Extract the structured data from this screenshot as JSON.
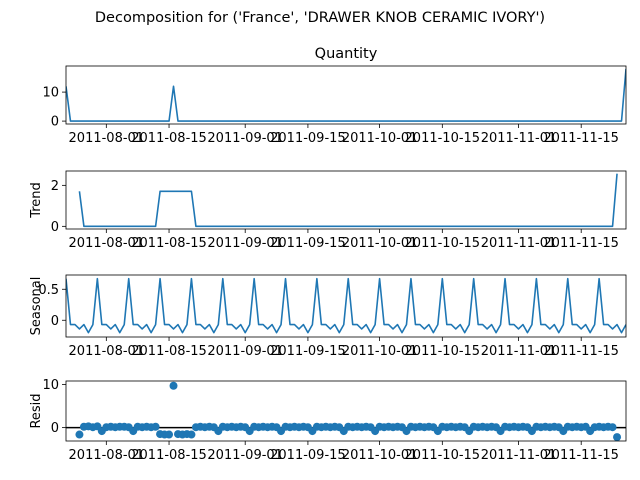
{
  "chart_data": {
    "type": "line",
    "suptitle": "Decomposition for ('France', 'DRAWER KNOB CERAMIC IVORY')",
    "x_start": "2011-07-23",
    "x_end": "2011-11-25",
    "x_ticks": [
      "2011-08-01",
      "2011-08-15",
      "2011-09-01",
      "2011-09-15",
      "2011-10-01",
      "2011-10-15",
      "2011-11-01",
      "2011-11-15"
    ],
    "colors": {
      "series": "#1f77b4",
      "zero_line": "#000000"
    },
    "panels": [
      {
        "kind": "line",
        "title": "Quantity",
        "ylabel": "",
        "ylim": [
          -1,
          19
        ],
        "yticks": [
          0,
          10
        ],
        "points": [
          [
            "2011-07-23",
            12
          ],
          [
            "2011-07-24",
            0
          ],
          [
            "2011-08-15",
            0
          ],
          [
            "2011-08-16",
            12
          ],
          [
            "2011-08-17",
            0
          ],
          [
            "2011-11-24",
            0
          ],
          [
            "2011-11-25",
            18
          ]
        ]
      },
      {
        "kind": "line",
        "title": "",
        "ylabel": "Trend",
        "ylim": [
          -0.13,
          2.7
        ],
        "yticks": [
          0,
          2
        ],
        "points": [
          [
            "2011-07-26",
            1.71
          ],
          [
            "2011-07-27",
            0
          ],
          [
            "2011-08-12",
            0
          ],
          [
            "2011-08-13",
            1.71
          ],
          [
            "2011-08-20",
            1.71
          ],
          [
            "2011-08-21",
            0
          ],
          [
            "2011-11-22",
            0
          ],
          [
            "2011-11-23",
            2.57
          ]
        ]
      },
      {
        "kind": "seasonal",
        "title": "",
        "ylabel": "Seasonal",
        "ylim": [
          -0.27,
          0.73
        ],
        "yticks": [
          0.0,
          0.5
        ],
        "period_days": 7,
        "anchor": "2011-07-23",
        "pattern": [
          0.67,
          -0.07,
          -0.07,
          -0.14,
          -0.07,
          -0.2,
          -0.07
        ]
      },
      {
        "kind": "scatter",
        "title": "",
        "ylabel": "Resid",
        "ylim": [
          -3.1,
          10.8
        ],
        "yticks": [
          0,
          10
        ],
        "zero_line": true,
        "points": [
          [
            "2011-07-26",
            -1.6
          ],
          [
            "2011-07-27",
            0.2
          ],
          [
            "2011-07-28",
            0.3
          ],
          [
            "2011-07-29",
            0.1
          ],
          [
            "2011-07-30",
            0.3
          ],
          [
            "2011-07-31",
            -0.8
          ],
          [
            "2011-08-01",
            0.1
          ],
          [
            "2011-08-02",
            0.2
          ],
          [
            "2011-08-03",
            0.1
          ],
          [
            "2011-08-04",
            0.2
          ],
          [
            "2011-08-05",
            0.2
          ],
          [
            "2011-08-06",
            0.1
          ],
          [
            "2011-08-07",
            -0.8
          ],
          [
            "2011-08-08",
            0.2
          ],
          [
            "2011-08-09",
            0.1
          ],
          [
            "2011-08-10",
            0.2
          ],
          [
            "2011-08-11",
            0.1
          ],
          [
            "2011-08-12",
            0.2
          ],
          [
            "2011-08-13",
            -1.5
          ],
          [
            "2011-08-14",
            -1.6
          ],
          [
            "2011-08-15",
            -1.6
          ],
          [
            "2011-08-16",
            9.7
          ],
          [
            "2011-08-17",
            -1.5
          ],
          [
            "2011-08-18",
            -1.6
          ],
          [
            "2011-08-19",
            -1.5
          ],
          [
            "2011-08-20",
            -1.6
          ],
          [
            "2011-08-21",
            0.1
          ],
          [
            "2011-08-22",
            0.2
          ],
          [
            "2011-08-23",
            0.1
          ],
          [
            "2011-08-24",
            0.2
          ],
          [
            "2011-08-25",
            0.1
          ],
          [
            "2011-08-26",
            -0.8
          ],
          [
            "2011-08-27",
            0.2
          ],
          [
            "2011-08-28",
            0.1
          ],
          [
            "2011-08-29",
            0.2
          ],
          [
            "2011-08-30",
            0.1
          ],
          [
            "2011-08-31",
            0.2
          ],
          [
            "2011-09-01",
            0.1
          ],
          [
            "2011-09-02",
            -0.8
          ],
          [
            "2011-09-03",
            0.2
          ],
          [
            "2011-09-04",
            0.1
          ],
          [
            "2011-09-05",
            0.2
          ],
          [
            "2011-09-06",
            0.1
          ],
          [
            "2011-09-07",
            0.2
          ],
          [
            "2011-09-08",
            0.1
          ],
          [
            "2011-09-09",
            -0.8
          ],
          [
            "2011-09-10",
            0.2
          ],
          [
            "2011-09-11",
            0.1
          ],
          [
            "2011-09-12",
            0.2
          ],
          [
            "2011-09-13",
            0.1
          ],
          [
            "2011-09-14",
            0.2
          ],
          [
            "2011-09-15",
            0.1
          ],
          [
            "2011-09-16",
            -0.8
          ],
          [
            "2011-09-17",
            0.2
          ],
          [
            "2011-09-18",
            0.1
          ],
          [
            "2011-09-19",
            0.2
          ],
          [
            "2011-09-20",
            0.1
          ],
          [
            "2011-09-21",
            0.2
          ],
          [
            "2011-09-22",
            0.1
          ],
          [
            "2011-09-23",
            -0.8
          ],
          [
            "2011-09-24",
            0.2
          ],
          [
            "2011-09-25",
            0.1
          ],
          [
            "2011-09-26",
            0.2
          ],
          [
            "2011-09-27",
            0.1
          ],
          [
            "2011-09-28",
            0.2
          ],
          [
            "2011-09-29",
            0.1
          ],
          [
            "2011-09-30",
            -0.8
          ],
          [
            "2011-10-01",
            0.2
          ],
          [
            "2011-10-02",
            0.1
          ],
          [
            "2011-10-03",
            0.2
          ],
          [
            "2011-10-04",
            0.1
          ],
          [
            "2011-10-05",
            0.2
          ],
          [
            "2011-10-06",
            0.1
          ],
          [
            "2011-10-07",
            -0.8
          ],
          [
            "2011-10-08",
            0.2
          ],
          [
            "2011-10-09",
            0.1
          ],
          [
            "2011-10-10",
            0.2
          ],
          [
            "2011-10-11",
            0.1
          ],
          [
            "2011-10-12",
            0.2
          ],
          [
            "2011-10-13",
            0.1
          ],
          [
            "2011-10-14",
            -0.8
          ],
          [
            "2011-10-15",
            0.2
          ],
          [
            "2011-10-16",
            0.1
          ],
          [
            "2011-10-17",
            0.2
          ],
          [
            "2011-10-18",
            0.1
          ],
          [
            "2011-10-19",
            0.2
          ],
          [
            "2011-10-20",
            0.1
          ],
          [
            "2011-10-21",
            -0.8
          ],
          [
            "2011-10-22",
            0.2
          ],
          [
            "2011-10-23",
            0.1
          ],
          [
            "2011-10-24",
            0.2
          ],
          [
            "2011-10-25",
            0.1
          ],
          [
            "2011-10-26",
            0.2
          ],
          [
            "2011-10-27",
            0.1
          ],
          [
            "2011-10-28",
            -0.8
          ],
          [
            "2011-10-29",
            0.2
          ],
          [
            "2011-10-30",
            0.1
          ],
          [
            "2011-10-31",
            0.2
          ],
          [
            "2011-11-01",
            0.1
          ],
          [
            "2011-11-02",
            0.2
          ],
          [
            "2011-11-03",
            0.1
          ],
          [
            "2011-11-04",
            -0.8
          ],
          [
            "2011-11-05",
            0.2
          ],
          [
            "2011-11-06",
            0.1
          ],
          [
            "2011-11-07",
            0.2
          ],
          [
            "2011-11-08",
            0.1
          ],
          [
            "2011-11-09",
            0.2
          ],
          [
            "2011-11-10",
            0.1
          ],
          [
            "2011-11-11",
            -0.8
          ],
          [
            "2011-11-12",
            0.2
          ],
          [
            "2011-11-13",
            0.1
          ],
          [
            "2011-11-14",
            0.2
          ],
          [
            "2011-11-15",
            0.1
          ],
          [
            "2011-11-16",
            0.2
          ],
          [
            "2011-11-17",
            -0.8
          ],
          [
            "2011-11-18",
            0.1
          ],
          [
            "2011-11-19",
            0.2
          ],
          [
            "2011-11-20",
            0.1
          ],
          [
            "2011-11-21",
            0.2
          ],
          [
            "2011-11-22",
            0.1
          ],
          [
            "2011-11-23",
            -2.2
          ]
        ]
      }
    ]
  }
}
